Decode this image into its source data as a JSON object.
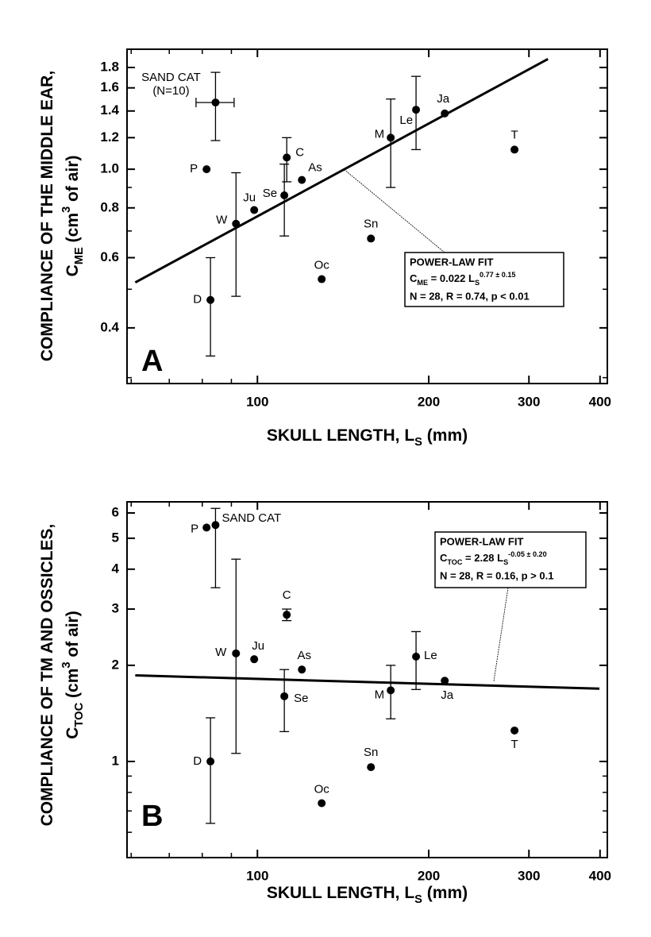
{
  "chart_data": [
    {
      "type": "scatter",
      "panel_label": "A",
      "log_x": true,
      "log_y": true,
      "x_label": [
        {
          "text": "SKULL LENGTH, L"
        },
        {
          "text": "S",
          "shift": "sub"
        },
        {
          "text": " (mm)"
        }
      ],
      "y_label": [
        [
          {
            "text": "COMPLIANCE OF THE MIDDLE EAR,"
          }
        ],
        [
          {
            "text": "C"
          },
          {
            "text": "ME",
            "shift": "sub"
          },
          {
            "text": " (cm"
          },
          {
            "text": "3",
            "shift": "super"
          },
          {
            "text": " of air)"
          }
        ]
      ],
      "xlim": [
        59,
        412
      ],
      "ylim": [
        0.29,
        2.0
      ],
      "xticks": [
        100,
        200,
        300,
        400
      ],
      "xminorticks": [
        60,
        70,
        80,
        90
      ],
      "yticks": [
        0.4,
        0.6,
        0.8,
        {
          "value": 1,
          "label": "1.0"
        },
        1.2,
        1.4,
        1.6,
        1.8
      ],
      "yminorticks": [
        0.3,
        0.5,
        0.7,
        0.9
      ],
      "color": "#000000",
      "categories": [
        "SAND CAT",
        "P",
        "D",
        "W",
        "Ju",
        "Se",
        "C",
        "As",
        "Oc",
        "Sn",
        "M",
        "Le",
        "Ja",
        "T"
      ],
      "annotation": "(N=10)",
      "x": [
        84.4,
        81.4,
        82.7,
        91.7,
        98.7,
        111.5,
        112.6,
        119.7,
        129.7,
        158.3,
        171.5,
        190,
        213.4,
        283
      ],
      "values": [
        1.47,
        1.0,
        0.47,
        0.73,
        0.79,
        0.86,
        1.07,
        0.94,
        0.53,
        0.67,
        1.2,
        1.41,
        1.38,
        1.12
      ],
      "ylow": [
        1.18,
        null,
        0.34,
        0.48,
        null,
        0.68,
        0.93,
        null,
        null,
        null,
        0.9,
        1.12,
        null,
        null
      ],
      "yhigh": [
        1.75,
        null,
        0.6,
        0.98,
        null,
        1.03,
        1.2,
        null,
        null,
        null,
        1.5,
        1.71,
        null,
        null
      ],
      "xlow": [
        78,
        null,
        null,
        null,
        null,
        null,
        null,
        null,
        null,
        null,
        null,
        null,
        null,
        null
      ],
      "xhigh": [
        91,
        null,
        null,
        null,
        null,
        null,
        null,
        null,
        null,
        null,
        null,
        null,
        null,
        null
      ],
      "fit": {
        "x": [
          61,
          324
        ],
        "values": [
          0.52,
          1.89
        ]
      },
      "fit_box": {
        "title": "POWER-LAW FIT",
        "equation": [
          {
            "text": "C"
          },
          {
            "text": "ME",
            "shift": "sub"
          },
          {
            "text": " = 0.022 L"
          },
          {
            "text": "S",
            "shift": "sub"
          },
          {
            "text": "0.77 ± 0.15",
            "shift": "super"
          }
        ],
        "stats": "N = 28, R = 0.74, p < 0.01"
      }
    },
    {
      "type": "scatter",
      "panel_label": "B",
      "log_x": true,
      "log_y": true,
      "x_label": [
        {
          "text": "SKULL LENGTH, L"
        },
        {
          "text": "S",
          "shift": "sub"
        },
        {
          "text": " (mm)"
        }
      ],
      "y_label": [
        [
          {
            "text": "COMPLIANCE OF TM AND OSSICLES,"
          }
        ],
        [
          {
            "text": "C"
          },
          {
            "text": "TOC",
            "shift": "sub"
          },
          {
            "text": " (cm"
          },
          {
            "text": "3",
            "shift": "super"
          },
          {
            "text": " of air)"
          }
        ]
      ],
      "xlim": [
        59,
        412
      ],
      "ylim": [
        0.5,
        6.5
      ],
      "xticks": [
        100,
        200,
        300,
        400
      ],
      "xminorticks": [
        60,
        70,
        80,
        90
      ],
      "yticks": [
        1,
        2,
        3,
        4,
        5,
        6
      ],
      "yminorticks": [
        0.6,
        0.7,
        0.8,
        0.9
      ],
      "color": "#000000",
      "categories": [
        "SAND CAT",
        "P",
        "D",
        "W",
        "Ju",
        "Se",
        "C",
        "As",
        "Oc",
        "Sn",
        "M",
        "Le",
        "Ja",
        "T"
      ],
      "x": [
        84.4,
        81.4,
        82.7,
        91.7,
        98.7,
        111.5,
        112.6,
        119.7,
        129.7,
        158.3,
        171.5,
        190,
        213.4,
        283
      ],
      "values": [
        5.5,
        5.4,
        1.0,
        2.18,
        2.09,
        1.6,
        2.88,
        1.94,
        0.74,
        0.96,
        1.67,
        2.13,
        1.79,
        1.25
      ],
      "ylow": [
        3.5,
        null,
        0.64,
        1.06,
        null,
        1.24,
        2.76,
        null,
        null,
        null,
        1.36,
        1.68,
        null,
        null
      ],
      "yhigh": [
        6.2,
        null,
        1.37,
        4.3,
        null,
        1.94,
        3.0,
        null,
        null,
        null,
        2.0,
        2.55,
        null,
        null
      ],
      "fit": {
        "x": [
          61,
          399
        ],
        "values": [
          1.86,
          1.69
        ]
      },
      "fit_box": {
        "title": "POWER-LAW FIT",
        "equation": [
          {
            "text": "C"
          },
          {
            "text": "TOC",
            "shift": "sub"
          },
          {
            "text": " = 2.28 L"
          },
          {
            "text": "S",
            "shift": "sub"
          },
          {
            "text": "-0.05 ± 0.20",
            "shift": "super"
          }
        ],
        "stats": "N = 28, R = 0.16, p > 0.1"
      }
    }
  ]
}
